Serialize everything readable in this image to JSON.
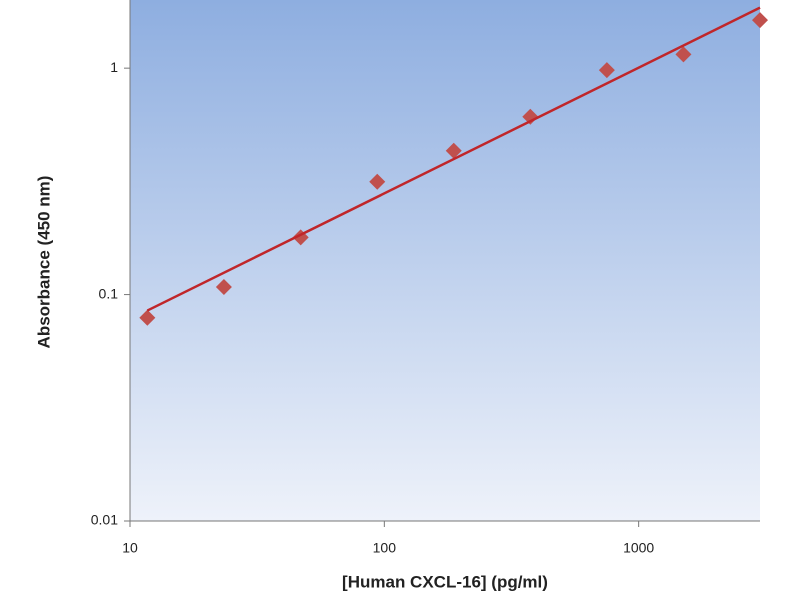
{
  "chart_data": {
    "type": "scatter",
    "x_label": "[Human CXCL-16]  (pg/ml)",
    "y_label": "Absorbance (450 nm)",
    "log_x": true,
    "log_y": true,
    "xlim": [
      10,
      3000
    ],
    "ylim": [
      0.01,
      2
    ],
    "xticks": [
      10,
      100,
      1000
    ],
    "yticks": [
      0.01,
      0.1,
      1
    ],
    "series": [
      {
        "type": "scatter",
        "color": "#c0504d",
        "x": [
          11.7,
          23.4,
          46.9,
          93.8,
          187.5,
          375,
          750,
          1500,
          3000
        ],
        "values": [
          0.079,
          0.108,
          0.179,
          0.315,
          0.432,
          0.61,
          0.98,
          1.15,
          1.63
        ]
      },
      {
        "type": "line",
        "color": "#c0262a",
        "x": [
          11.7,
          3000
        ],
        "values": [
          0.085,
          1.85
        ]
      }
    ]
  }
}
